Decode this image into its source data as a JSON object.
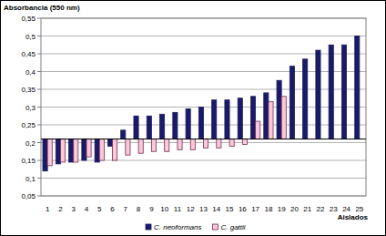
{
  "chart_data": {
    "type": "bar",
    "y_label": "Absorbancia (550 nm)",
    "x_label": "Aislados",
    "categories": [
      "1",
      "2",
      "3",
      "4",
      "5",
      "6",
      "7",
      "8",
      "9",
      "10",
      "11",
      "12",
      "13",
      "14",
      "15",
      "16",
      "17",
      "18",
      "19",
      "20",
      "21",
      "22",
      "23",
      "24",
      "25"
    ],
    "baseline": 0.21,
    "series": [
      {
        "name": "C. neoformans",
        "color": "#1a1a66",
        "values": [
          0.12,
          0.14,
          0.145,
          0.15,
          0.145,
          0.19,
          0.235,
          0.275,
          0.275,
          0.28,
          0.285,
          0.295,
          0.3,
          0.32,
          0.32,
          0.325,
          0.33,
          0.34,
          0.375,
          0.415,
          0.435,
          0.46,
          0.475,
          0.475,
          0.5
        ]
      },
      {
        "name": "C. gattii",
        "color": "#f7c9d9",
        "values": [
          0.135,
          0.145,
          0.145,
          0.16,
          0.15,
          0.15,
          0.165,
          0.17,
          0.175,
          0.175,
          0.18,
          0.18,
          0.185,
          0.185,
          0.19,
          0.195,
          0.26,
          0.315,
          0.33,
          null,
          null,
          null,
          null,
          null,
          null
        ]
      }
    ],
    "ylim": [
      0.05,
      0.55
    ],
    "yticks": [
      {
        "value": 0.05,
        "label": "0,05"
      },
      {
        "value": 0.1,
        "label": "0,1"
      },
      {
        "value": 0.15,
        "label": "0,15"
      },
      {
        "value": 0.2,
        "label": "0,2"
      },
      {
        "value": 0.25,
        "label": "0,25"
      },
      {
        "value": 0.3,
        "label": "0,3"
      },
      {
        "value": 0.35,
        "label": "0,35"
      },
      {
        "value": 0.4,
        "label": "0,4"
      },
      {
        "value": 0.45,
        "label": "0,45"
      },
      {
        "value": 0.5,
        "label": "0,5"
      },
      {
        "value": 0.55,
        "label": "0,55"
      }
    ],
    "grid": true,
    "legend": "bottom"
  }
}
